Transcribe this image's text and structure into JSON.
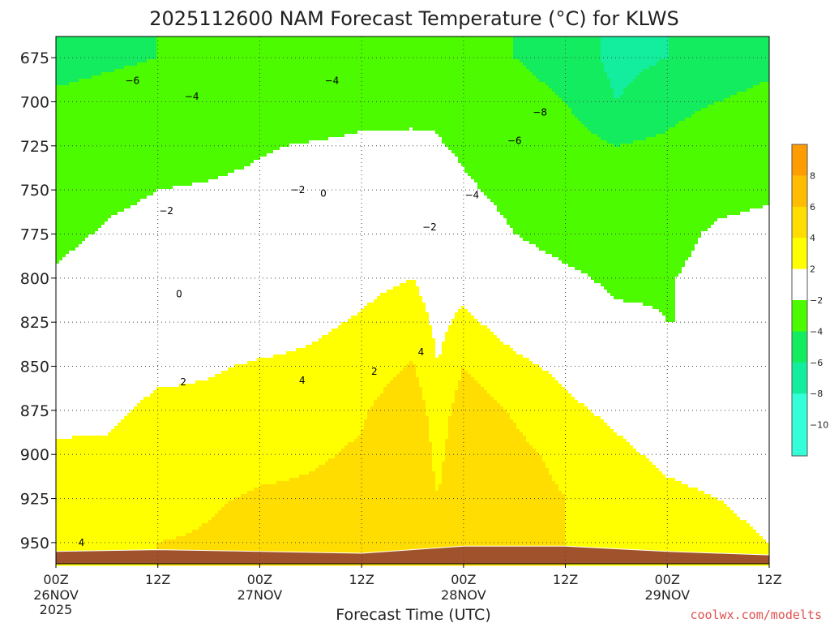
{
  "chart_data": {
    "type": "heatmap",
    "title": "2025112600 NAM Forecast Temperature (°C) for KLWS",
    "xlabel": "Forecast Time (UTC)",
    "ylabel": "",
    "credit": "coolwx.com/modelts",
    "x_ticks": [
      {
        "hours": 0,
        "time": "00Z",
        "date": "26NOV",
        "year": "2025"
      },
      {
        "hours": 12,
        "time": "12Z",
        "date": "",
        "year": ""
      },
      {
        "hours": 24,
        "time": "00Z",
        "date": "27NOV",
        "year": ""
      },
      {
        "hours": 36,
        "time": "12Z",
        "date": "",
        "year": ""
      },
      {
        "hours": 48,
        "time": "00Z",
        "date": "28NOV",
        "year": ""
      },
      {
        "hours": 60,
        "time": "12Z",
        "date": "",
        "year": ""
      },
      {
        "hours": 72,
        "time": "00Z",
        "date": "29NOV",
        "year": ""
      },
      {
        "hours": 84,
        "time": "12Z",
        "date": "",
        "year": ""
      }
    ],
    "xlim": [
      0,
      84
    ],
    "y_ticks": [
      675,
      700,
      725,
      750,
      775,
      800,
      825,
      850,
      875,
      900,
      925,
      950
    ],
    "ylim": [
      962,
      663
    ],
    "grid": true,
    "colorbar": {
      "levels": [
        -10,
        -8,
        -6,
        -4,
        -2,
        2,
        4,
        6,
        8
      ],
      "colors": [
        "#33ffd8",
        "#12ee9e",
        "#14ec60",
        "#4cfb00",
        "#ffffff",
        "#ffff00",
        "#ffdd00",
        "#ffbc00",
        "#ff9d00"
      ],
      "labels": [
        "−10",
        "−8",
        "−6",
        "−4",
        "−2",
        "2",
        "4",
        "6",
        "8"
      ],
      "bins": [
        -12,
        -10,
        -8,
        -6,
        -4,
        -2,
        2,
        4,
        6,
        8,
        10
      ],
      "bin_colors": [
        "#33ffd8",
        "#12ee9e",
        "#14ec60",
        "#4cfb00",
        "#4cfb00",
        "#ffffff",
        "#ffff00",
        "#ffdd00",
        "#ffbc00",
        "#ff9d00"
      ]
    },
    "terrain_color": "#a0522d",
    "surface_pressure_hpa": [
      {
        "hours": 0,
        "p": 955
      },
      {
        "hours": 12,
        "p": 954
      },
      {
        "hours": 24,
        "p": 955
      },
      {
        "hours": 36,
        "p": 956
      },
      {
        "hours": 48,
        "p": 952
      },
      {
        "hours": 60,
        "p": 952
      },
      {
        "hours": 72,
        "p": 955
      },
      {
        "hours": 84,
        "p": 957
      }
    ],
    "profiles": [
      {
        "hours": 0,
        "levels": [
          [
            675,
            -7
          ],
          [
            700,
            -5.5
          ],
          [
            725,
            -4
          ],
          [
            750,
            -3
          ],
          [
            775,
            -2.5
          ],
          [
            800,
            -1.8
          ],
          [
            825,
            -0.5
          ],
          [
            850,
            0.6
          ],
          [
            875,
            1.5
          ],
          [
            900,
            2.3
          ],
          [
            925,
            3
          ],
          [
            950,
            3.8
          ]
        ]
      },
      {
        "hours": 6,
        "levels": [
          [
            675,
            -6.5
          ],
          [
            700,
            -5
          ],
          [
            725,
            -3.5
          ],
          [
            750,
            -2.4
          ],
          [
            775,
            -1.8
          ],
          [
            800,
            -1
          ],
          [
            825,
            0
          ],
          [
            850,
            0.7
          ],
          [
            875,
            1.6
          ],
          [
            900,
            2.3
          ],
          [
            925,
            2.8
          ],
          [
            950,
            3.9
          ]
        ]
      },
      {
        "hours": 12,
        "levels": [
          [
            675,
            -6
          ],
          [
            700,
            -4.5
          ],
          [
            725,
            -3
          ],
          [
            750,
            -2
          ],
          [
            775,
            -1.5
          ],
          [
            800,
            -0.5
          ],
          [
            825,
            0.5
          ],
          [
            850,
            1.5
          ],
          [
            875,
            2.5
          ],
          [
            900,
            2.8
          ],
          [
            925,
            3.2
          ],
          [
            950,
            4
          ]
        ]
      },
      {
        "hours": 18,
        "levels": [
          [
            675,
            -5.5
          ],
          [
            700,
            -4
          ],
          [
            725,
            -2.8
          ],
          [
            750,
            -1.8
          ],
          [
            775,
            -1
          ],
          [
            800,
            0
          ],
          [
            825,
            0.5
          ],
          [
            850,
            1.8
          ],
          [
            875,
            2.5
          ],
          [
            900,
            3
          ],
          [
            925,
            3.8
          ],
          [
            950,
            4.2
          ]
        ]
      },
      {
        "hours": 24,
        "levels": [
          [
            675,
            -5
          ],
          [
            700,
            -3.5
          ],
          [
            725,
            -2.2
          ],
          [
            750,
            -1.5
          ],
          [
            775,
            -0.5
          ],
          [
            800,
            0.2
          ],
          [
            825,
            1
          ],
          [
            850,
            2.2
          ],
          [
            875,
            3
          ],
          [
            900,
            3.5
          ],
          [
            925,
            4.2
          ],
          [
            950,
            4.8
          ]
        ]
      },
      {
        "hours": 30,
        "levels": [
          [
            675,
            -5
          ],
          [
            700,
            -4
          ],
          [
            725,
            -1.8
          ],
          [
            750,
            -1
          ],
          [
            775,
            -0.3
          ],
          [
            800,
            0.8
          ],
          [
            825,
            1.6
          ],
          [
            850,
            2.4
          ],
          [
            875,
            3.3
          ],
          [
            900,
            3.8
          ],
          [
            925,
            4.3
          ],
          [
            950,
            4.6
          ]
        ]
      },
      {
        "hours": 36,
        "levels": [
          [
            675,
            -4.5
          ],
          [
            700,
            -3
          ],
          [
            725,
            -1.5
          ],
          [
            750,
            -0.5
          ],
          [
            775,
            0.5
          ],
          [
            800,
            1.5
          ],
          [
            825,
            2.2
          ],
          [
            850,
            3
          ],
          [
            875,
            3.8
          ],
          [
            900,
            4.2
          ],
          [
            925,
            4.6
          ],
          [
            950,
            4.7
          ]
        ]
      },
      {
        "hours": 42,
        "levels": [
          [
            675,
            -4
          ],
          [
            700,
            -2.8
          ],
          [
            725,
            -1.5
          ],
          [
            750,
            0
          ],
          [
            775,
            1
          ],
          [
            800,
            2
          ],
          [
            825,
            3
          ],
          [
            850,
            4.2
          ],
          [
            875,
            5.2
          ],
          [
            900,
            5.6
          ],
          [
            925,
            5.5
          ],
          [
            950,
            5
          ]
        ]
      },
      {
        "hours": 45,
        "levels": [
          [
            675,
            -3.8
          ],
          [
            700,
            -2.5
          ],
          [
            725,
            -1.8
          ],
          [
            750,
            -0.5
          ],
          [
            775,
            0
          ],
          [
            800,
            1
          ],
          [
            825,
            1.5
          ],
          [
            850,
            2
          ],
          [
            875,
            3
          ],
          [
            900,
            3.5
          ],
          [
            925,
            4
          ],
          [
            950,
            4.5
          ]
        ]
      },
      {
        "hours": 48,
        "levels": [
          [
            675,
            -4.5
          ],
          [
            700,
            -3.8
          ],
          [
            725,
            -2.5
          ],
          [
            750,
            -1.5
          ],
          [
            775,
            0
          ],
          [
            800,
            1.2
          ],
          [
            825,
            2.5
          ],
          [
            850,
            4
          ],
          [
            875,
            5
          ],
          [
            900,
            5.5
          ],
          [
            925,
            5.8
          ],
          [
            950,
            5.2
          ]
        ]
      },
      {
        "hours": 54,
        "levels": [
          [
            675,
            -6
          ],
          [
            700,
            -5
          ],
          [
            725,
            -4
          ],
          [
            750,
            -3
          ],
          [
            775,
            -2
          ],
          [
            800,
            -0.5
          ],
          [
            825,
            1
          ],
          [
            850,
            2.5
          ],
          [
            875,
            3.8
          ],
          [
            900,
            4.5
          ],
          [
            925,
            4.8
          ],
          [
            950,
            4.5
          ]
        ]
      },
      {
        "hours": 60,
        "levels": [
          [
            675,
            -7
          ],
          [
            700,
            -6
          ],
          [
            725,
            -5
          ],
          [
            750,
            -4
          ],
          [
            775,
            -3
          ],
          [
            800,
            -1.5
          ],
          [
            825,
            0
          ],
          [
            850,
            1.5
          ],
          [
            875,
            2.5
          ],
          [
            900,
            3.5
          ],
          [
            925,
            4
          ],
          [
            950,
            4
          ]
        ]
      },
      {
        "hours": 66,
        "levels": [
          [
            675,
            -8.5
          ],
          [
            700,
            -8
          ],
          [
            725,
            -6
          ],
          [
            750,
            -4.5
          ],
          [
            775,
            -3.5
          ],
          [
            800,
            -2.5
          ],
          [
            825,
            -1.5
          ],
          [
            850,
            0
          ],
          [
            875,
            1.5
          ],
          [
            900,
            2.5
          ],
          [
            925,
            3.5
          ],
          [
            950,
            3.8
          ]
        ]
      },
      {
        "hours": 72,
        "levels": [
          [
            675,
            -8
          ],
          [
            700,
            -7
          ],
          [
            725,
            -5.5
          ],
          [
            750,
            -4
          ],
          [
            775,
            -3
          ],
          [
            800,
            -2.2
          ],
          [
            825,
            -2
          ],
          [
            850,
            -1
          ],
          [
            875,
            0.5
          ],
          [
            900,
            1.5
          ],
          [
            925,
            2.5
          ],
          [
            950,
            3
          ]
        ]
      },
      {
        "hours": 78,
        "levels": [
          [
            675,
            -7
          ],
          [
            700,
            -6
          ],
          [
            725,
            -4
          ],
          [
            750,
            -3
          ],
          [
            775,
            -1.5
          ],
          [
            800,
            -1
          ],
          [
            825,
            -2
          ],
          [
            850,
            -2
          ],
          [
            875,
            0
          ],
          [
            900,
            1
          ],
          [
            925,
            2
          ],
          [
            950,
            2.5
          ]
        ]
      },
      {
        "hours": 84,
        "levels": [
          [
            675,
            -6.5
          ],
          [
            700,
            -5.5
          ],
          [
            725,
            -4
          ],
          [
            750,
            -2.5
          ],
          [
            775,
            -1
          ],
          [
            800,
            -0.5
          ],
          [
            825,
            -1
          ],
          [
            850,
            -1.5
          ],
          [
            875,
            0
          ],
          [
            900,
            0.5
          ],
          [
            925,
            1.5
          ],
          [
            950,
            2
          ]
        ]
      }
    ],
    "contour_labels": [
      {
        "text": "−6",
        "hours": 9,
        "p": 688
      },
      {
        "text": "−4",
        "hours": 16,
        "p": 697
      },
      {
        "text": "−2",
        "hours": 13,
        "p": 762
      },
      {
        "text": "−2",
        "hours": 28.5,
        "p": 750
      },
      {
        "text": "0",
        "hours": 31.5,
        "p": 752
      },
      {
        "text": "−4",
        "hours": 32.5,
        "p": 688
      },
      {
        "text": "0",
        "hours": 14.5,
        "p": 809
      },
      {
        "text": "2",
        "hours": 15,
        "p": 859
      },
      {
        "text": "4",
        "hours": 29,
        "p": 858
      },
      {
        "text": "2",
        "hours": 37.5,
        "p": 853
      },
      {
        "text": "4",
        "hours": 43,
        "p": 842
      },
      {
        "text": "−2",
        "hours": 44,
        "p": 771
      },
      {
        "text": "−4",
        "hours": 49,
        "p": 753
      },
      {
        "text": "−6",
        "hours": 54,
        "p": 722
      },
      {
        "text": "−8",
        "hours": 57,
        "p": 706
      },
      {
        "text": "4",
        "hours": 3,
        "p": 950
      }
    ]
  }
}
